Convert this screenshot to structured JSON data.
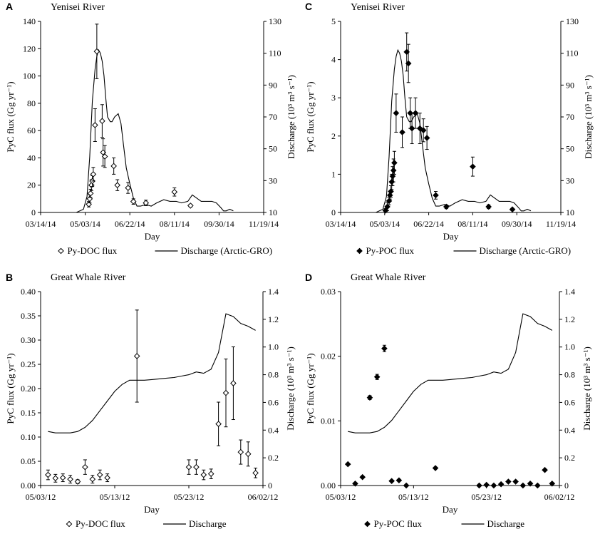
{
  "chart_data": [
    {
      "panel": "A",
      "type": "scatter",
      "title": "Yenisei River",
      "xlabel": "Day",
      "ylabel": "PyC flux (Gg yr⁻¹)",
      "y2label": "Discharge (10³ m³ s⁻¹)",
      "x_tick_labels": [
        "03/14/14",
        "05/03/14",
        "06/22/14",
        "08/11/14",
        "09/30/14",
        "11/19/14"
      ],
      "xlim": [
        0,
        250
      ],
      "ylim": [
        0,
        140
      ],
      "y_ticks": [
        0,
        20,
        40,
        60,
        80,
        100,
        120,
        140
      ],
      "y2lim": [
        10,
        130
      ],
      "y2_ticks": [
        10,
        30,
        50,
        70,
        90,
        110,
        130
      ],
      "marker": "open-diamond",
      "series": [
        {
          "name": "Py-DOC flux",
          "axis": "left",
          "x": [
            54,
            55,
            56,
            57,
            58,
            59,
            61,
            63,
            69,
            70,
            72,
            82,
            86,
            98,
            104,
            118,
            150,
            168
          ],
          "y": [
            6,
            10,
            14,
            20,
            23,
            28,
            64,
            118,
            67,
            44,
            41,
            34,
            20,
            18,
            8,
            7,
            15,
            5
          ],
          "err": [
            2,
            3,
            3,
            4,
            4,
            5,
            12,
            20,
            12,
            10,
            8,
            6,
            4,
            4,
            2,
            2,
            3,
            1
          ]
        },
        {
          "name": "Discharge (Arctic-GRO)",
          "axis": "right",
          "x": [
            40,
            48,
            52,
            55,
            58,
            61,
            63,
            65,
            67,
            69,
            71,
            73,
            75,
            78,
            80,
            83,
            87,
            90,
            93,
            96,
            100,
            104,
            108,
            112,
            118,
            124,
            130,
            138,
            145,
            152,
            158,
            165,
            170,
            175,
            180,
            186,
            192,
            197,
            202,
            205,
            208,
            212,
            216
          ],
          "y": [
            10,
            12,
            20,
            45,
            80,
            100,
            108,
            112,
            110,
            105,
            96,
            82,
            70,
            67,
            67,
            70,
            72,
            66,
            52,
            38,
            28,
            19,
            14,
            14,
            15,
            14,
            16,
            18,
            17,
            17,
            16,
            17,
            21,
            19,
            17,
            17,
            17,
            16,
            13,
            11,
            11,
            12,
            11
          ]
        }
      ],
      "legend": [
        "Py-DOC flux",
        "Discharge (Arctic-GRO)"
      ]
    },
    {
      "panel": "C",
      "type": "scatter",
      "title": "Yenisei River",
      "xlabel": "Day",
      "ylabel": "PyC flux (Gg yr⁻¹)",
      "y2label": "Discharge (10³ m³ s⁻¹)",
      "x_tick_labels": [
        "03/14/14",
        "05/03/14",
        "06/22/14",
        "08/11/14",
        "09/30/14",
        "11/19/14"
      ],
      "xlim": [
        0,
        250
      ],
      "ylim": [
        0,
        5
      ],
      "y_ticks": [
        0,
        1,
        2,
        3,
        4,
        5
      ],
      "y2lim": [
        10,
        130
      ],
      "y2_ticks": [
        10,
        30,
        50,
        70,
        90,
        110,
        130
      ],
      "marker": "filled-diamond",
      "series": [
        {
          "name": "Py-POC flux",
          "axis": "left",
          "x": [
            51,
            53,
            55,
            56,
            57,
            58,
            59,
            60,
            61,
            63,
            70,
            75,
            77,
            79,
            81,
            85,
            90,
            94,
            98,
            108,
            120,
            150,
            168,
            195
          ],
          "y": [
            0.05,
            0.15,
            0.3,
            0.45,
            0.55,
            0.8,
            0.95,
            1.1,
            1.3,
            2.6,
            2.1,
            4.2,
            3.9,
            2.6,
            2.2,
            2.6,
            2.2,
            2.15,
            1.95,
            0.45,
            0.15,
            1.2,
            0.15,
            0.08
          ],
          "err": [
            0.05,
            0.1,
            0.1,
            0.1,
            0.15,
            0.2,
            0.25,
            0.3,
            0.3,
            0.5,
            0.4,
            0.5,
            0.5,
            0.4,
            0.4,
            0.4,
            0.4,
            0.3,
            0.3,
            0.1,
            0.05,
            0.25,
            0.05,
            0.03
          ]
        },
        {
          "name": "Discharge (Arctic-GRO)",
          "axis": "right",
          "x": [
            40,
            48,
            52,
            55,
            58,
            61,
            63,
            65,
            67,
            69,
            71,
            73,
            75,
            78,
            80,
            83,
            87,
            90,
            93,
            96,
            100,
            104,
            108,
            112,
            118,
            124,
            130,
            138,
            145,
            152,
            158,
            165,
            170,
            175,
            180,
            186,
            192,
            197,
            202,
            205,
            208,
            212,
            216
          ],
          "y": [
            10,
            12,
            20,
            45,
            80,
            100,
            108,
            112,
            110,
            105,
            96,
            82,
            70,
            67,
            67,
            70,
            72,
            66,
            52,
            38,
            28,
            19,
            14,
            14,
            15,
            14,
            16,
            18,
            17,
            17,
            16,
            17,
            21,
            19,
            17,
            17,
            17,
            16,
            13,
            11,
            11,
            12,
            11
          ]
        }
      ],
      "legend": [
        "Py-POC flux",
        "Discharge (Arctic-GRO)"
      ]
    },
    {
      "panel": "B",
      "type": "scatter",
      "title": "Great Whale River",
      "xlabel": "Day",
      "ylabel": "PyC flux (Gg yr⁻¹)",
      "y2label": "Discharge (10³ m³ s⁻¹)",
      "x_tick_labels": [
        "05/03/12",
        "05/13/12",
        "05/23/12",
        "06/02/12"
      ],
      "xlim": [
        0,
        30
      ],
      "ylim": [
        0,
        0.4
      ],
      "y_ticks": [
        0,
        0.05,
        0.1,
        0.15,
        0.2,
        0.25,
        0.3,
        0.35,
        0.4
      ],
      "y_tick_labels": [
        "0.00",
        "0.05",
        "0.10",
        "0.15",
        "0.20",
        "0.25",
        "0.30",
        "0.35",
        "0.40"
      ],
      "y2lim": [
        0,
        1.4
      ],
      "y2_ticks": [
        0,
        0.2,
        0.4,
        0.6,
        0.8,
        1.0,
        1.2,
        1.4
      ],
      "y2_tick_labels": [
        "0",
        "0.2",
        "0.4",
        "0.6",
        "0.8",
        "1.0",
        "1.2",
        "1.4"
      ],
      "marker": "open-diamond",
      "series": [
        {
          "name": "Py-DOC flux",
          "axis": "left",
          "x": [
            1,
            2,
            3,
            4,
            5,
            6,
            7,
            8,
            9,
            13,
            20,
            21,
            22,
            23,
            24,
            25,
            26,
            27,
            28,
            29
          ],
          "y": [
            0.022,
            0.015,
            0.016,
            0.013,
            0.008,
            0.038,
            0.013,
            0.022,
            0.016,
            0.267,
            0.038,
            0.038,
            0.022,
            0.024,
            0.127,
            0.191,
            0.211,
            0.069,
            0.065,
            0.026
          ],
          "err": [
            0.01,
            0.008,
            0.008,
            0.008,
            0.004,
            0.015,
            0.008,
            0.01,
            0.008,
            0.095,
            0.015,
            0.015,
            0.01,
            0.01,
            0.045,
            0.07,
            0.075,
            0.025,
            0.025,
            0.01
          ]
        },
        {
          "name": "Discharge",
          "axis": "right",
          "x": [
            1,
            2,
            3,
            4,
            5,
            6,
            7,
            8,
            9,
            10,
            11,
            12,
            13,
            14,
            15,
            16,
            17,
            18,
            19,
            20,
            21,
            22,
            23,
            24,
            25,
            26,
            27,
            28,
            29
          ],
          "y": [
            0.39,
            0.38,
            0.38,
            0.38,
            0.39,
            0.42,
            0.47,
            0.54,
            0.61,
            0.68,
            0.73,
            0.76,
            0.76,
            0.76,
            0.765,
            0.77,
            0.775,
            0.78,
            0.79,
            0.8,
            0.82,
            0.81,
            0.84,
            0.96,
            1.24,
            1.22,
            1.17,
            1.15,
            1.12
          ]
        }
      ],
      "legend": [
        "Py-DOC flux",
        "Discharge"
      ]
    },
    {
      "panel": "D",
      "type": "scatter",
      "title": "Great Whale River",
      "xlabel": "Day",
      "ylabel": "PyC flux (Gg yr⁻¹)",
      "y2label": "Discharge (10³ m³ s⁻¹)",
      "x_tick_labels": [
        "05/03/12",
        "05/13/12",
        "05/23/12",
        "06/02/12"
      ],
      "xlim": [
        0,
        30
      ],
      "ylim": [
        0,
        0.03
      ],
      "y_ticks": [
        0,
        0.01,
        0.02,
        0.03
      ],
      "y_tick_labels": [
        "0.00",
        "0.01",
        "0.02",
        "0.03"
      ],
      "y2lim": [
        0,
        1.4
      ],
      "y2_ticks": [
        0,
        0.2,
        0.4,
        0.6,
        0.8,
        1.0,
        1.2,
        1.4
      ],
      "y2_tick_labels": [
        "0",
        "0.2",
        "0.4",
        "0.6",
        "0.8",
        "1.0",
        "1.2",
        "1.4"
      ],
      "marker": "filled-diamond",
      "series": [
        {
          "name": "Py-POC flux",
          "axis": "left",
          "x": [
            1,
            2,
            3,
            4,
            5,
            6,
            7,
            8,
            9,
            13,
            19,
            20,
            21,
            22,
            23,
            24,
            25,
            26,
            27,
            28,
            29
          ],
          "y": [
            0.0033,
            0.0003,
            0.0013,
            0.0136,
            0.0168,
            0.0212,
            0.0007,
            0.0008,
            0.0,
            0.0027,
            0.0,
            0.0001,
            0.0,
            0.0002,
            0.0006,
            0.0006,
            0.0,
            0.0003,
            0.0,
            0.0024,
            0.0003
          ],
          "err": [
            0,
            0,
            0,
            0.0003,
            0.0004,
            0.0005,
            0,
            0,
            0,
            0,
            0,
            0,
            0,
            0,
            0,
            0,
            0,
            0,
            0,
            0,
            0
          ]
        },
        {
          "name": "Discharge",
          "axis": "right",
          "x": [
            1,
            2,
            3,
            4,
            5,
            6,
            7,
            8,
            9,
            10,
            11,
            12,
            13,
            14,
            15,
            16,
            17,
            18,
            19,
            20,
            21,
            22,
            23,
            24,
            25,
            26,
            27,
            28,
            29
          ],
          "y": [
            0.39,
            0.38,
            0.38,
            0.38,
            0.39,
            0.42,
            0.47,
            0.54,
            0.61,
            0.68,
            0.73,
            0.76,
            0.76,
            0.76,
            0.765,
            0.77,
            0.775,
            0.78,
            0.79,
            0.8,
            0.82,
            0.81,
            0.84,
            0.96,
            1.24,
            1.22,
            1.17,
            1.15,
            1.12
          ]
        }
      ],
      "legend": [
        "Py-POC flux",
        "Discharge"
      ]
    }
  ]
}
